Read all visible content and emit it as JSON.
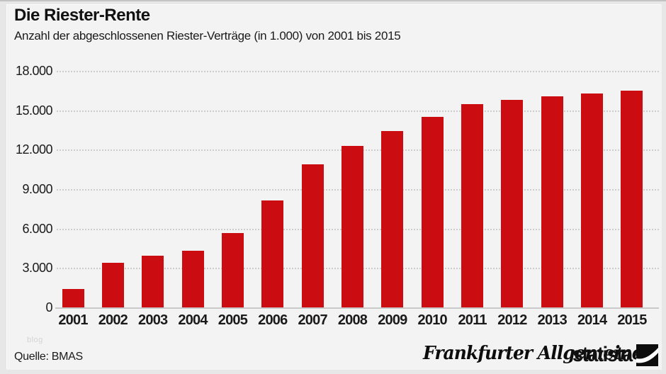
{
  "header": {
    "title": "Die Riester-Rente",
    "subtitle": "Anzahl der abgeschlossenen Riester-Verträge (in 1.000) von 2001 bis 2015"
  },
  "footer": {
    "source": "Quelle: BMAS",
    "watermark": "blog",
    "brand_left": "Frankfurter Allgemeine",
    "brand_right": "statista",
    "brand_right_icon": "statista-swoosh-icon"
  },
  "colors": {
    "bar": "#cb0d11",
    "background": "#f3f3f3",
    "grid": "#cdcdcd",
    "text": "#1a1a1a"
  },
  "chart_data": {
    "type": "bar",
    "title": "Die Riester-Rente",
    "subtitle": "Anzahl der abgeschlossenen Riester-Verträge (in 1.000) von 2001 bis 2015",
    "categories": [
      "2001",
      "2002",
      "2003",
      "2004",
      "2005",
      "2006",
      "2007",
      "2008",
      "2009",
      "2010",
      "2011",
      "2012",
      "2013",
      "2014",
      "2015"
    ],
    "values": [
      1400,
      3400,
      3950,
      4300,
      5650,
      8150,
      10900,
      12300,
      13400,
      14500,
      15450,
      15800,
      16050,
      16300,
      16500
    ],
    "xlabel": "",
    "ylabel": "",
    "ylim": [
      0,
      18000
    ],
    "ytick_step": 3000,
    "ytick_labels": [
      "0",
      "3.000",
      "6.000",
      "9.000",
      "12.000",
      "15.000",
      "18.000"
    ],
    "grid": "horizontal-dotted",
    "legend": "none",
    "bar_color": "#cb0d11"
  }
}
